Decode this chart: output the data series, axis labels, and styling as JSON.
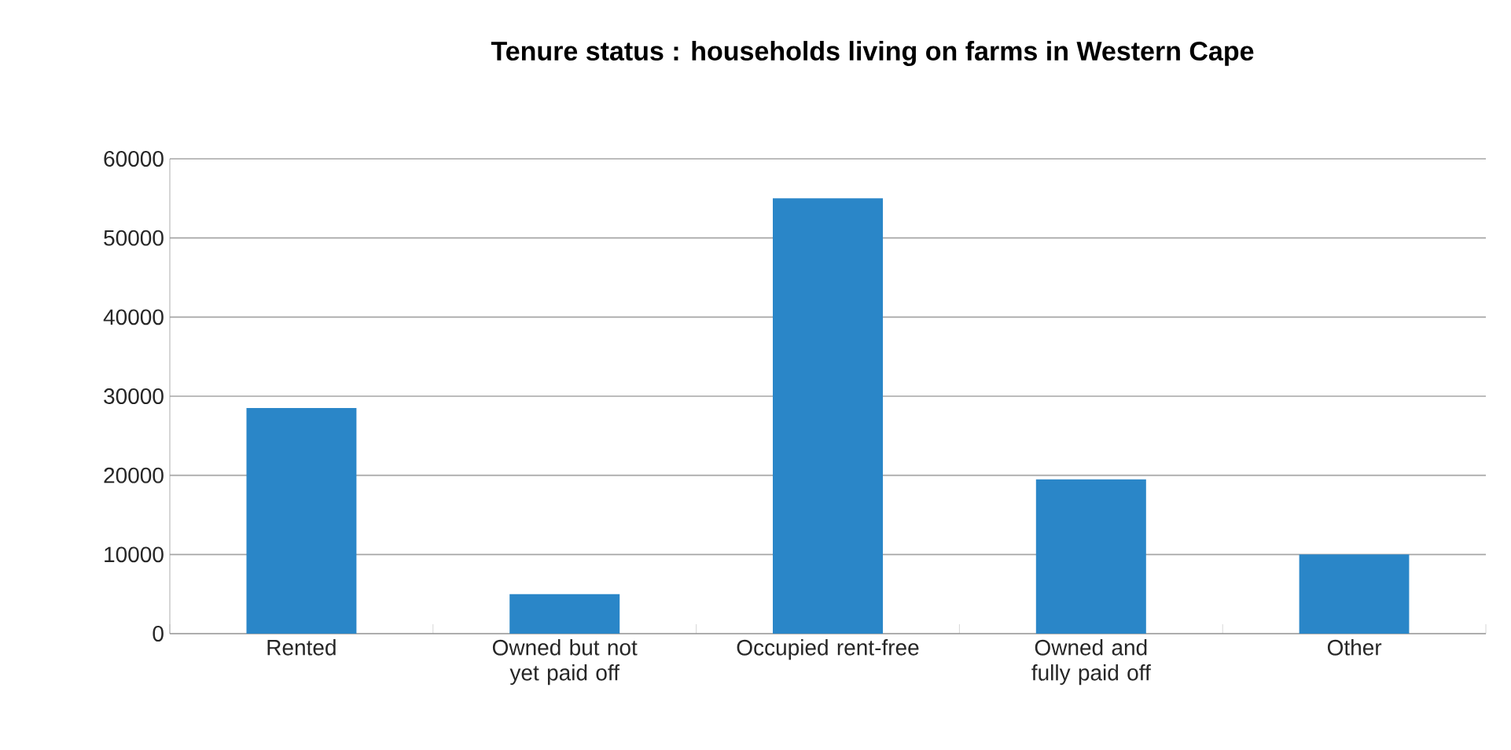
{
  "chart_data": {
    "type": "bar",
    "title": "Tenure status : households living on farms in Western Cape",
    "categories": [
      "Rented",
      "Owned but not yet paid off",
      "Occupied rent-free",
      "Owned and fully paid off",
      "Other"
    ],
    "values": [
      28500,
      5000,
      55000,
      19500,
      10000
    ],
    "color": "#2a86c8",
    "ylim": [
      0,
      60000
    ],
    "yticks": [
      0,
      10000,
      20000,
      30000,
      40000,
      50000,
      60000
    ],
    "grid": "y"
  }
}
